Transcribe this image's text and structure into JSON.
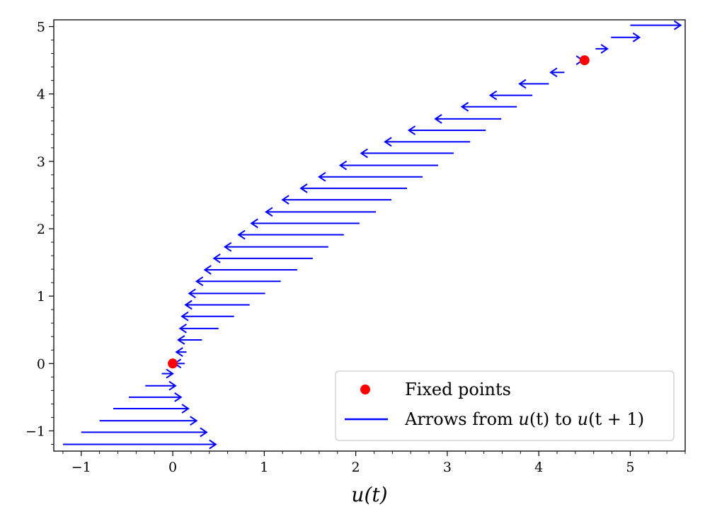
{
  "chart_data": {
    "type": "quiver",
    "xlabel": "u(t)",
    "ylabel": "",
    "title": "",
    "xlim": [
      -1.3,
      5.6
    ],
    "ylim": [
      -1.3,
      5.1
    ],
    "xticks": [
      -1,
      0,
      1,
      2,
      3,
      4,
      5
    ],
    "xtick_labels": [
      "−1",
      "0",
      "1",
      "2",
      "3",
      "4",
      "5"
    ],
    "yticks": [
      -1,
      0,
      1,
      2,
      3,
      4,
      5
    ],
    "ytick_labels": [
      "−1",
      "0",
      "1",
      "2",
      "3",
      "4",
      "5"
    ],
    "grid": false,
    "legend_position": "lower-right",
    "colors": {
      "arrows": "#0000ff",
      "fixed_points": "#ff0000"
    },
    "series": [
      {
        "name": "Fixed points",
        "kind": "scatter",
        "points": [
          [
            0,
            0
          ],
          [
            4.5,
            4.5
          ]
        ]
      },
      {
        "name": "Arrows from u(t) to u(t + 1)",
        "kind": "arrows",
        "arrows": [
          {
            "from": -1.2,
            "to": 0.47,
            "y": -1.2
          },
          {
            "from": -1.0,
            "to": 0.37,
            "y": -1.02
          },
          {
            "from": -0.8,
            "to": 0.26,
            "y": -0.85
          },
          {
            "from": -0.65,
            "to": 0.17,
            "y": -0.67
          },
          {
            "from": -0.48,
            "to": 0.09,
            "y": -0.5
          },
          {
            "from": -0.3,
            "to": 0.03,
            "y": -0.33
          },
          {
            "from": -0.12,
            "to": 0.0,
            "y": -0.15
          },
          {
            "from": 0.13,
            "to": 0.02,
            "y": 0.0
          },
          {
            "from": 0.15,
            "to": 0.04,
            "y": 0.17
          },
          {
            "from": 0.32,
            "to": 0.06,
            "y": 0.35
          },
          {
            "from": 0.5,
            "to": 0.08,
            "y": 0.52
          },
          {
            "from": 0.67,
            "to": 0.1,
            "y": 0.7
          },
          {
            "from": 0.84,
            "to": 0.14,
            "y": 0.87
          },
          {
            "from": 1.01,
            "to": 0.18,
            "y": 1.04
          },
          {
            "from": 1.18,
            "to": 0.26,
            "y": 1.22
          },
          {
            "from": 1.36,
            "to": 0.35,
            "y": 1.39
          },
          {
            "from": 1.53,
            "to": 0.45,
            "y": 1.56
          },
          {
            "from": 1.7,
            "to": 0.57,
            "y": 1.73
          },
          {
            "from": 1.87,
            "to": 0.72,
            "y": 1.91
          },
          {
            "from": 2.04,
            "to": 0.86,
            "y": 2.08
          },
          {
            "from": 2.22,
            "to": 1.02,
            "y": 2.25
          },
          {
            "from": 2.39,
            "to": 1.2,
            "y": 2.43
          },
          {
            "from": 2.56,
            "to": 1.4,
            "y": 2.6
          },
          {
            "from": 2.73,
            "to": 1.6,
            "y": 2.77
          },
          {
            "from": 2.9,
            "to": 1.83,
            "y": 2.94
          },
          {
            "from": 3.07,
            "to": 2.06,
            "y": 3.12
          },
          {
            "from": 3.25,
            "to": 2.32,
            "y": 3.29
          },
          {
            "from": 3.42,
            "to": 2.58,
            "y": 3.46
          },
          {
            "from": 3.59,
            "to": 2.87,
            "y": 3.63
          },
          {
            "from": 3.76,
            "to": 3.16,
            "y": 3.81
          },
          {
            "from": 3.93,
            "to": 3.47,
            "y": 3.98
          },
          {
            "from": 4.11,
            "to": 3.79,
            "y": 4.15
          },
          {
            "from": 4.28,
            "to": 4.13,
            "y": 4.32
          },
          {
            "from": 4.45,
            "to": 4.48,
            "y": 4.5
          },
          {
            "from": 4.62,
            "to": 4.75,
            "y": 4.67
          },
          {
            "from": 4.79,
            "to": 5.1,
            "y": 4.84
          },
          {
            "from": 5.0,
            "to": 5.55,
            "y": 5.02
          }
        ]
      }
    ],
    "legend": {
      "fixed_label": "Fixed points",
      "arrows_label_prefix": "Arrows from ",
      "arrows_label_u1": "u",
      "arrows_label_t1": "(t)",
      "arrows_label_mid": " to ",
      "arrows_label_u2": "u",
      "arrows_label_t2": "(t + 1)"
    }
  }
}
